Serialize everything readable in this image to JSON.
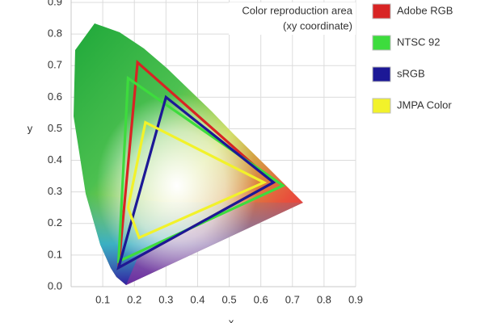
{
  "chart_data": {
    "type": "polygon",
    "x_label": "x",
    "y_label": "y",
    "annotation": [
      "Color reproduction area",
      "(xy coordinate)"
    ],
    "xlim": [
      0,
      0.9
    ],
    "ylim": [
      0,
      0.9
    ],
    "xticks": [
      0.1,
      0.2,
      0.3,
      0.4,
      0.5,
      0.6,
      0.7,
      0.8,
      0.9
    ],
    "yticks": [
      {
        "value": 0,
        "label": "0.0"
      },
      0.1,
      0.2,
      0.3,
      0.4,
      0.5,
      0.6,
      0.7,
      0.8,
      0.9
    ],
    "grid": true,
    "series": [
      {
        "name": "Adobe RGB",
        "color": "#d82424",
        "x": [
          0.64,
          0.21,
          0.15
        ],
        "y": [
          0.33,
          0.71,
          0.06
        ]
      },
      {
        "name": "NTSC 92",
        "color": "#3ddc3d",
        "x": [
          0.67,
          0.18,
          0.15
        ],
        "y": [
          0.32,
          0.66,
          0.08
        ]
      },
      {
        "name": "sRGB",
        "color": "#1c1896",
        "x": [
          0.64,
          0.3,
          0.15
        ],
        "y": [
          0.33,
          0.6,
          0.06
        ]
      },
      {
        "name": "JMPA Color",
        "color": "#f2f22a",
        "x": [
          0.61,
          0.235,
          0.18,
          0.215
        ],
        "y": [
          0.33,
          0.52,
          0.25,
          0.155
        ]
      }
    ]
  }
}
